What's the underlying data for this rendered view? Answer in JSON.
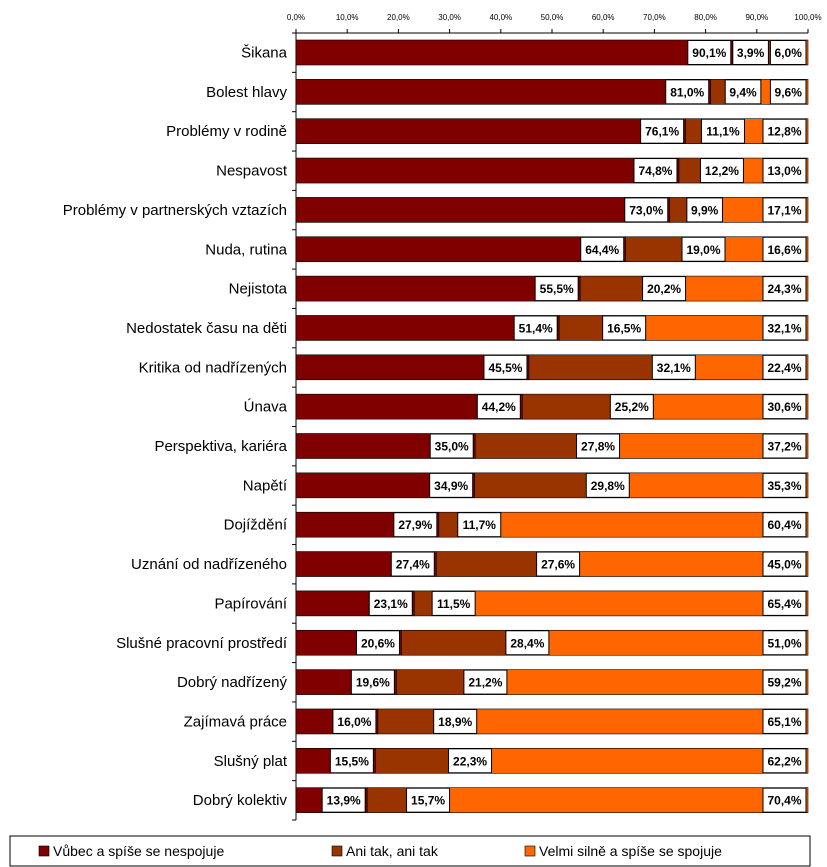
{
  "chart_data": {
    "type": "bar",
    "orientation": "horizontal",
    "stacked": true,
    "xlim": [
      0,
      100
    ],
    "x_ticks": [
      "0,0%",
      "10,0%",
      "20,0%",
      "30,0%",
      "40,0%",
      "50,0%",
      "60,0%",
      "70,0%",
      "80,0%",
      "90,0%",
      "100,0%"
    ],
    "x_axis_position": "top",
    "grid": false,
    "legend_position": "bottom",
    "categories": [
      "Šikana",
      "Bolest hlavy",
      "Problémy v rodině",
      "Nespavost",
      "Problémy v partnerských vztazích",
      "Nuda, rutina",
      "Nejistota",
      "Nedostatek času na děti",
      "Kritika od nadřízených",
      "Únava",
      "Perspektiva, kariéra",
      "Napětí",
      "Dojíždění",
      "Uznání od nadřízeného",
      "Papírování",
      "Slušné pracovní prostředí",
      "Dobrý nadřízený",
      "Zajímavá práce",
      "Slušný plat",
      "Dobrý kolektiv"
    ],
    "series": [
      {
        "name": "Vůbec a spíše se nespojuje",
        "color": "#800000",
        "values": [
          90.1,
          81.0,
          76.1,
          74.8,
          73.0,
          64.4,
          55.5,
          51.4,
          45.5,
          44.2,
          35.0,
          34.9,
          27.9,
          27.4,
          23.1,
          20.6,
          19.6,
          16.0,
          15.5,
          13.9
        ],
        "labels": [
          "90,1%",
          "81,0%",
          "76,1%",
          "74,8%",
          "73,0%",
          "64,4%",
          "55,5%",
          "51,4%",
          "45,5%",
          "44,2%",
          "35,0%",
          "34,9%",
          "27,9%",
          "27,4%",
          "23,1%",
          "20,6%",
          "19,6%",
          "16,0%",
          "15,5%",
          "13,9%"
        ]
      },
      {
        "name": "Ani tak, ani tak",
        "color": "#993300",
        "values": [
          3.9,
          9.4,
          11.1,
          12.2,
          9.9,
          19.0,
          20.2,
          16.5,
          32.1,
          25.2,
          27.8,
          29.8,
          11.7,
          27.6,
          11.5,
          28.4,
          21.2,
          18.9,
          22.3,
          15.7
        ],
        "labels": [
          "3,9%",
          "9,4%",
          "11,1%",
          "12,2%",
          "9,9%",
          "19,0%",
          "20,2%",
          "16,5%",
          "32,1%",
          "25,2%",
          "27,8%",
          "29,8%",
          "11,7%",
          "27,6%",
          "11,5%",
          "28,4%",
          "21,2%",
          "18,9%",
          "22,3%",
          "15,7%"
        ]
      },
      {
        "name": "Velmi silně a spíše se spojuje",
        "color": "#ff6600",
        "values": [
          6.0,
          9.6,
          12.8,
          13.0,
          17.1,
          16.6,
          24.3,
          32.1,
          22.4,
          30.6,
          37.2,
          35.3,
          60.4,
          45.0,
          65.4,
          51.0,
          59.2,
          65.1,
          62.2,
          70.4
        ],
        "labels": [
          "6,0%",
          "9,6%",
          "12,8%",
          "13,0%",
          "17,1%",
          "16,6%",
          "24,3%",
          "32,1%",
          "22,4%",
          "30,6%",
          "37,2%",
          "35,3%",
          "60,4%",
          "45,0%",
          "65,4%",
          "51,0%",
          "59,2%",
          "65,1%",
          "62,2%",
          "70,4%"
        ]
      }
    ]
  }
}
